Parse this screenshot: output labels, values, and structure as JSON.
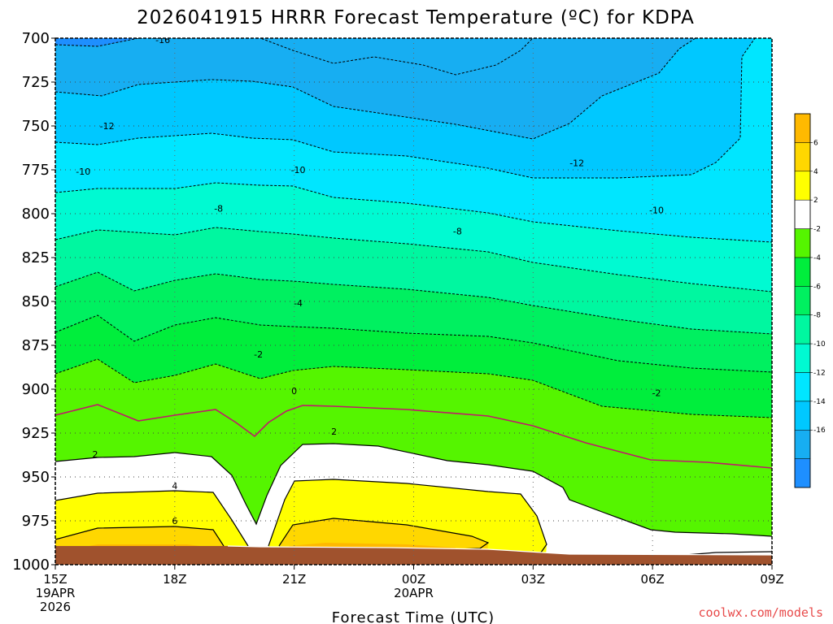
{
  "chart_data": {
    "type": "contour",
    "title": "2026041915 HRRR Forecast Temperature (ºC) for KDPA",
    "xlabel": "Forecast Time (UTC)",
    "x_ticks": [
      {
        "hour": 0,
        "lines": [
          "15Z",
          "19APR",
          "2026"
        ]
      },
      {
        "hour": 3,
        "lines": [
          "18Z"
        ]
      },
      {
        "hour": 6,
        "lines": [
          "21Z"
        ]
      },
      {
        "hour": 9,
        "lines": [
          "00Z",
          "20APR"
        ]
      },
      {
        "hour": 12,
        "lines": [
          "03Z"
        ]
      },
      {
        "hour": 15,
        "lines": [
          "06Z"
        ]
      },
      {
        "hour": 18,
        "lines": [
          "09Z"
        ]
      }
    ],
    "xlim": [
      0,
      18
    ],
    "y_ticks": [
      "700",
      "725",
      "750",
      "775",
      "800",
      "825",
      "850",
      "875",
      "900",
      "925",
      "950",
      "975",
      "1000"
    ],
    "ylim": [
      700,
      1000
    ],
    "grid": true,
    "colorbar": {
      "position": "right",
      "bins": [
        {
          "color": "#1e8fff",
          "label": ""
        },
        {
          "color": "#17aef2",
          "label": "-16"
        },
        {
          "color": "#00c8ff",
          "label": "-14"
        },
        {
          "color": "#00e6ff",
          "label": "-12"
        },
        {
          "color": "#00fad2",
          "label": "-10"
        },
        {
          "color": "#00f7a0",
          "label": "-8"
        },
        {
          "color": "#00f060",
          "label": "-6"
        },
        {
          "color": "#00ee3c",
          "label": "-4"
        },
        {
          "color": "#55f500",
          "label": "-2"
        },
        {
          "color": "#ffffff",
          "label": "2"
        },
        {
          "color": "#ffff00",
          "label": "4"
        },
        {
          "color": "#ffd700",
          "label": "6"
        },
        {
          "color": "#ffb900",
          "label": ""
        }
      ]
    },
    "ground_color": "#a0522d",
    "contour_labels": [
      {
        "text": "-16",
        "hour": 2.7,
        "p": 701
      },
      {
        "text": "-12",
        "hour": 1.3,
        "p": 750
      },
      {
        "text": "-12",
        "hour": 13.1,
        "p": 771
      },
      {
        "text": "-10",
        "hour": 0.7,
        "p": 776
      },
      {
        "text": "-10",
        "hour": 6.1,
        "p": 775
      },
      {
        "text": "-10",
        "hour": 15.1,
        "p": 798
      },
      {
        "text": "-8",
        "hour": 4.1,
        "p": 797
      },
      {
        "text": "-8",
        "hour": 10.1,
        "p": 810
      },
      {
        "text": "-4",
        "hour": 6.1,
        "p": 851
      },
      {
        "text": "-2",
        "hour": 5.1,
        "p": 880
      },
      {
        "text": "-2",
        "hour": 15.1,
        "p": 902
      },
      {
        "text": "0",
        "hour": 6.0,
        "p": 901
      },
      {
        "text": "2",
        "hour": 1.0,
        "p": 937
      },
      {
        "text": "2",
        "hour": 7.0,
        "p": 924
      },
      {
        "text": "4",
        "hour": 3.0,
        "p": 955
      },
      {
        "text": "6",
        "hour": 3.0,
        "p": 975
      }
    ]
  },
  "footer": {
    "credit": "coolwx.com/models"
  }
}
